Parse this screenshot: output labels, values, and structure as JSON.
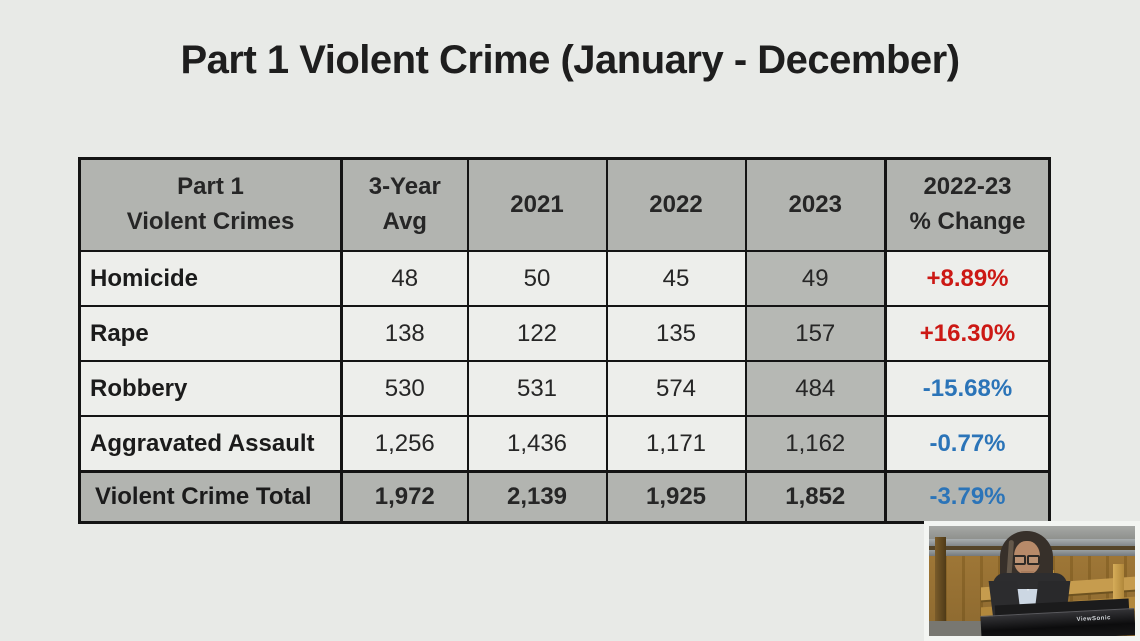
{
  "title": "Part 1 Violent Crime (January - December)",
  "table": {
    "header": {
      "crimes_line1": "Part 1",
      "crimes_line2": "Violent Crimes",
      "avg_line1": "3-Year",
      "avg_line2": "Avg",
      "y2021": "2021",
      "y2022": "2022",
      "y2023": "2023",
      "change_line1": "2022-23",
      "change_line2": "% Change"
    },
    "rows": [
      {
        "label": "Homicide",
        "avg": "48",
        "y2021": "50",
        "y2022": "45",
        "y2023": "49",
        "change": "+8.89%"
      },
      {
        "label": "Rape",
        "avg": "138",
        "y2021": "122",
        "y2022": "135",
        "y2023": "157",
        "change": "+16.30%"
      },
      {
        "label": "Robbery",
        "avg": "530",
        "y2021": "531",
        "y2022": "574",
        "y2023": "484",
        "change": "-15.68%"
      },
      {
        "label": "Aggravated Assault",
        "avg": "1,256",
        "y2021": "1,436",
        "y2022": "1,171",
        "y2023": "1,162",
        "change": "-0.77%"
      },
      {
        "label": "Violent Crime Total",
        "avg": "1,972",
        "y2021": "2,139",
        "y2022": "1,925",
        "y2023": "1,852",
        "change": "-3.79%"
      }
    ]
  },
  "chart_data": {
    "type": "table",
    "title": "Part 1 Violent Crime (January - December)",
    "columns": [
      "Part 1 Violent Crimes",
      "3-Year Avg",
      "2021",
      "2022",
      "2023",
      "2022-23 % Change"
    ],
    "rows": [
      [
        "Homicide",
        48,
        50,
        45,
        49,
        "+8.89%"
      ],
      [
        "Rape",
        138,
        122,
        135,
        157,
        "+16.30%"
      ],
      [
        "Robbery",
        530,
        531,
        574,
        484,
        "-15.68%"
      ],
      [
        "Aggravated Assault",
        1256,
        1436,
        1171,
        1162,
        "-0.77%"
      ],
      [
        "Violent Crime Total",
        1972,
        2139,
        1925,
        1852,
        "-3.79%"
      ]
    ],
    "layout_hints": "Header row, 2023 column and total row shaded gray; positive % change in red, negative % change in blue; black cell borders on light background"
  },
  "pip": {
    "monitor_text": "ViewSonic"
  },
  "colors": {
    "background": "#e8eae7",
    "cell_light": "#edeeeb",
    "cell_gray": "#b2b4b0",
    "border": "#141414",
    "increase_red": "#cc1814",
    "decrease_blue": "#2b74b8",
    "title_text": "#1e1e1e"
  }
}
